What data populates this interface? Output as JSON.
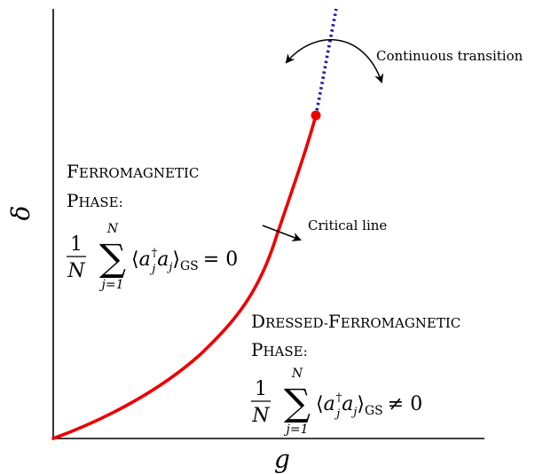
{
  "axes": {
    "x_label": "g",
    "y_label": "δ"
  },
  "annotations": {
    "continuous_transition": "Continuous transition",
    "critical_line": "Critical line"
  },
  "regions": {
    "ferromagnetic": {
      "title_line1_cap": "F",
      "title_line1_rest": "ERROMAGNETIC",
      "title_line2_cap": "P",
      "title_line2_rest": "HASE:",
      "frac_num": "1",
      "frac_den": "N",
      "sum_upper": "N",
      "sum_lower": "j=1",
      "sum_symbol": "∑",
      "bracket_open": "⟨",
      "op_a": "a",
      "op_dag": "†",
      "op_j": "j",
      "op_a2": "a",
      "op_j2": "j",
      "bracket_close": "⟩",
      "sub": "GS",
      "relation": "= 0"
    },
    "dressed_ferromagnetic": {
      "title_line1_cap": "D",
      "title_line1_rest": "RESSED-",
      "title_line1_cap2": "F",
      "title_line1_rest2": "ERROMAGNETIC",
      "title_line2_cap": "P",
      "title_line2_rest": "HASE:",
      "frac_num": "1",
      "frac_den": "N",
      "sum_upper": "N",
      "sum_lower": "j=1",
      "sum_symbol": "∑",
      "bracket_open": "⟨",
      "op_a": "a",
      "op_dag": "†",
      "op_j": "j",
      "op_a2": "a",
      "op_j2": "j",
      "bracket_close": "⟩",
      "sub": "GS",
      "relation": "≠ 0"
    }
  },
  "colors": {
    "critical_line": "#ee0000",
    "continuous_extension": "#1a1aa8",
    "critical_point": "#ee0000",
    "axes": "#000000"
  }
}
